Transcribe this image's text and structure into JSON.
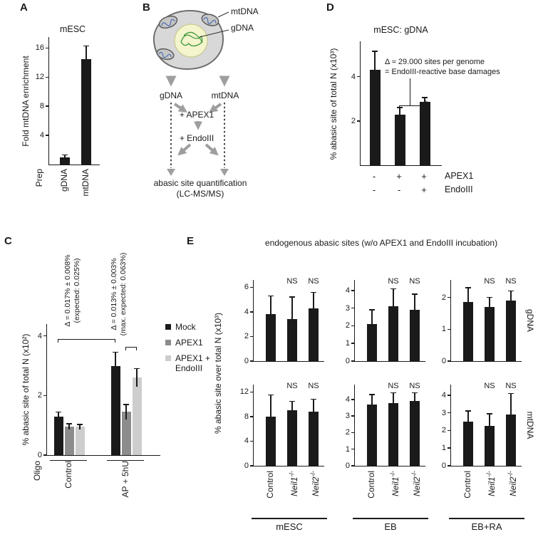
{
  "panel_letters": {
    "A": "A",
    "B": "B",
    "C": "C",
    "D": "D",
    "E": "E"
  },
  "panelB": {
    "cell": {
      "mtdna_label": "mtDNA",
      "gdna_label": "gDNA"
    },
    "flow": {
      "gdna": "gDNA",
      "mtdna": "mtDNA",
      "apex1": "+ APEX1",
      "endoiii": "+ EndoIII",
      "result_line1": "abasic site quantification",
      "result_line2": "(LC-MS/MS)"
    }
  },
  "panelC": {
    "legend": [
      {
        "label": "Mock",
        "color": "#1a1a1a"
      },
      {
        "label": "APEX1",
        "color": "#8c8c8c"
      },
      {
        "label": "APEX1 +\nEndoIII",
        "color": "#cdcdcd"
      }
    ],
    "annotations": [
      {
        "line1": "Δ = 0.017% ± 0.008%",
        "line2": "(expected: 0.025%)"
      },
      {
        "line1": "Δ = 0.013% ± 0.003%",
        "line2": "(max. expected: 0.063%)"
      }
    ]
  },
  "panelD": {
    "annotation_line1": "Δ ≈ 29.000 sites per genome",
    "annotation_line2": "= EndoIII-reactive base damages",
    "sig": "*",
    "treatment_rows": [
      {
        "label": "APEX1",
        "symbols": [
          "-",
          "+",
          "+"
        ]
      },
      {
        "label": "EndoIII",
        "symbols": [
          "-",
          "-",
          "+"
        ]
      }
    ]
  },
  "panelE": {
    "title": "endogenous abasic sites (w/o APEX1 and EndoIII incubation)",
    "ylabel": "% abasic site over total N (x10³)",
    "row_labels": [
      "gDNA",
      "mtDNA"
    ],
    "col_labels": [
      "mESC",
      "EB",
      "EB+RA"
    ],
    "categories": [
      {
        "label": "Control",
        "italic": false,
        "sup": ""
      },
      {
        "label": "Neil1",
        "italic": true,
        "sup": "-/-"
      },
      {
        "label": "Neil2",
        "italic": true,
        "sup": "-/-"
      }
    ]
  },
  "chart_data": [
    {
      "id": "A",
      "type": "bar",
      "title": "mESC",
      "ylabel": "Fold mtDNA enrichment",
      "xlabel": "Prep",
      "categories": [
        "gDNA",
        "mtDNA"
      ],
      "values": [
        1.0,
        14.5
      ],
      "errors": [
        0.3,
        1.8
      ],
      "yticks": [
        4,
        8,
        12,
        16
      ],
      "ylim": [
        0,
        17.5
      ]
    },
    {
      "id": "C",
      "type": "grouped_bar",
      "ylabel": "% abasic site of total N (x10²)",
      "xlabel": "Oligo",
      "categories": [
        "Control",
        "AP + 5hU"
      ],
      "series": [
        {
          "name": "Mock",
          "color": "#1a1a1a",
          "values": [
            1.3,
            3.0
          ],
          "errors": [
            0.15,
            0.45
          ]
        },
        {
          "name": "APEX1",
          "color": "#8c8c8c",
          "values": [
            0.95,
            1.45
          ],
          "errors": [
            0.1,
            0.25
          ]
        },
        {
          "name": "APEX1 + EndoIII",
          "color": "#cdcdcd",
          "values": [
            0.95,
            2.6
          ],
          "errors": [
            0.08,
            0.3
          ]
        }
      ],
      "yticks": [
        0,
        2,
        4
      ],
      "ylim": [
        0,
        4.4
      ]
    },
    {
      "id": "D",
      "type": "bar",
      "title": "mESC: gDNA",
      "ylabel": "% abasic site of total N (x10³)",
      "categories": [
        "APEX1- EndoIII-",
        "APEX1+ EndoIII-",
        "APEX1+ EndoIII+"
      ],
      "values": [
        4.3,
        2.3,
        2.85
      ],
      "errors": [
        0.85,
        0.3,
        0.2
      ],
      "yticks": [
        2,
        4
      ],
      "ylim": [
        0,
        5.6
      ]
    },
    {
      "id": "E1",
      "type": "bar",
      "group": "gDNA",
      "condition": "mESC",
      "categories": [
        "Control",
        "Neil1-/-",
        "Neil2-/-"
      ],
      "values": [
        3.8,
        3.4,
        4.3
      ],
      "errors": [
        1.5,
        1.8,
        1.3
      ],
      "sig": [
        null,
        "NS",
        "NS"
      ],
      "yticks": [
        0,
        2,
        4,
        6
      ],
      "ylim": [
        0,
        6.6
      ]
    },
    {
      "id": "E2",
      "type": "bar",
      "group": "gDNA",
      "condition": "EB",
      "categories": [
        "Control",
        "Neil1-/-",
        "Neil2-/-"
      ],
      "values": [
        2.1,
        3.1,
        2.9
      ],
      "errors": [
        0.8,
        1.0,
        0.9
      ],
      "sig": [
        null,
        "NS",
        "NS"
      ],
      "yticks": [
        0,
        1,
        2,
        3,
        4
      ],
      "ylim": [
        0,
        4.6
      ]
    },
    {
      "id": "E3",
      "type": "bar",
      "group": "gDNA",
      "condition": "EB+RA",
      "categories": [
        "Control",
        "Neil1-/-",
        "Neil2-/-"
      ],
      "values": [
        1.85,
        1.7,
        1.9
      ],
      "errors": [
        0.45,
        0.3,
        0.3
      ],
      "sig": [
        null,
        "NS",
        "NS"
      ],
      "yticks": [
        0,
        1,
        2
      ],
      "ylim": [
        0,
        2.55
      ]
    },
    {
      "id": "E4",
      "type": "bar",
      "group": "mtDNA",
      "condition": "mESC",
      "categories": [
        "Control",
        "Neil1-/-",
        "Neil2-/-"
      ],
      "values": [
        8.0,
        9.0,
        8.8
      ],
      "errors": [
        3.5,
        1.5,
        2.0
      ],
      "sig": [
        null,
        "NS",
        "NS"
      ],
      "yticks": [
        0,
        4,
        8,
        12
      ],
      "ylim": [
        0,
        13.2
      ]
    },
    {
      "id": "E5",
      "type": "bar",
      "group": "mtDNA",
      "condition": "EB",
      "categories": [
        "Control",
        "Neil1-/-",
        "Neil2-/-"
      ],
      "values": [
        3.7,
        3.8,
        3.9
      ],
      "errors": [
        0.6,
        0.6,
        0.5
      ],
      "sig": [
        null,
        "NS",
        "NS"
      ],
      "yticks": [
        0,
        1,
        2,
        3,
        4
      ],
      "ylim": [
        0,
        4.9
      ]
    },
    {
      "id": "E6",
      "type": "bar",
      "group": "mtDNA",
      "condition": "EB+RA",
      "categories": [
        "Control",
        "Neil1-/-",
        "Neil2-/-"
      ],
      "values": [
        2.5,
        2.25,
        2.9
      ],
      "errors": [
        0.6,
        0.7,
        1.2
      ],
      "sig": [
        null,
        "NS",
        "NS"
      ],
      "yticks": [
        0,
        1,
        2,
        3,
        4
      ],
      "ylim": [
        0,
        4.6
      ]
    }
  ]
}
